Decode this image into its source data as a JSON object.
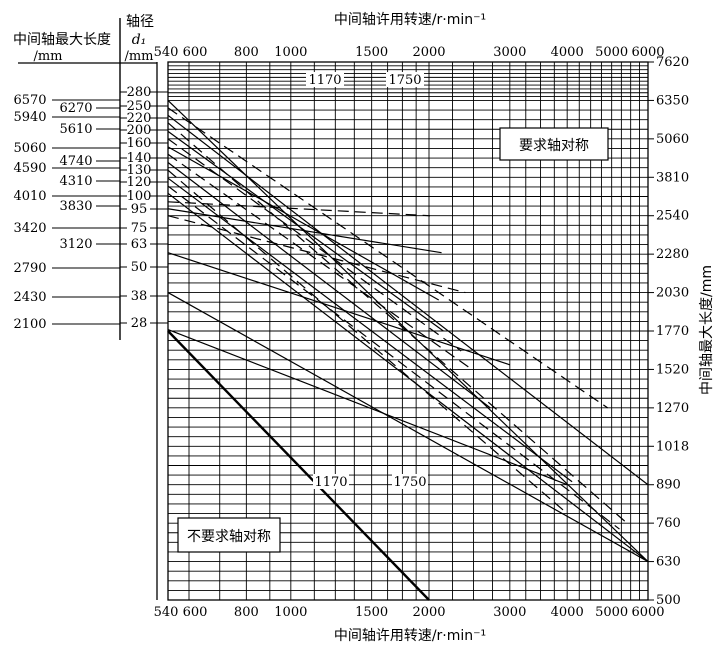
{
  "chart_data": {
    "type": "line",
    "title": "",
    "xlabel_top": "中间轴许用转速/r·min⁻¹",
    "xlabel_bottom": "中间轴许用转速/r·min⁻¹",
    "xscale": "log",
    "xlim": [
      540,
      6000
    ],
    "xticks": [
      540,
      600,
      800,
      1000,
      1500,
      2000,
      3000,
      4000,
      5000,
      6000
    ],
    "ylabel_right": "中间轴最大长度/mm",
    "right_ticks": [
      7620,
      6350,
      5060,
      3810,
      2540,
      2280,
      2030,
      1770,
      1520,
      1270,
      1018,
      890,
      760,
      630,
      500
    ],
    "left_header": {
      "length_title": "中间轴最大长度",
      "length_unit": "/mm",
      "dia_title": "轴径",
      "dia_symbol": "d₁",
      "dia_unit": "/mm"
    },
    "diameters": [
      "280",
      "250",
      "220",
      "200",
      "160",
      "140",
      "130",
      "120",
      "100",
      "95",
      "75",
      "63",
      "50",
      "38",
      "28"
    ],
    "lengths": [
      "6570",
      "6270",
      "5940",
      "5610",
      "5060",
      "4740",
      "4590",
      "4310",
      "4010",
      "3830",
      "3420",
      "3120",
      "2790",
      "2430",
      "2100"
    ],
    "box_sym": "要求轴对称",
    "box_nonsym": "不要求轴对称",
    "marker_labels": [
      "1170",
      "1750",
      "1170",
      "1750"
    ],
    "series": [
      {
        "style": "solid",
        "points": [
          [
            540,
            6350
          ],
          [
            6000,
            630
          ]
        ]
      },
      {
        "style": "dashed",
        "points": [
          [
            540,
            6100
          ],
          [
            4900,
            1270
          ]
        ]
      },
      {
        "style": "solid",
        "points": [
          [
            540,
            5850
          ],
          [
            6000,
            890
          ]
        ]
      },
      {
        "style": "dashed",
        "points": [
          [
            540,
            5600
          ],
          [
            5400,
            760
          ]
        ]
      },
      {
        "style": "solid",
        "points": [
          [
            540,
            5310
          ],
          [
            2150,
            1770
          ]
        ]
      },
      {
        "style": "dashed",
        "points": [
          [
            540,
            5060
          ],
          [
            2350,
            1640
          ]
        ]
      },
      {
        "style": "solid",
        "points": [
          [
            540,
            4800
          ],
          [
            2100,
            1980
          ]
        ]
      },
      {
        "style": "dashed",
        "points": [
          [
            540,
            4560
          ],
          [
            2480,
            1520
          ]
        ]
      },
      {
        "style": "solid",
        "points": [
          [
            540,
            4290
          ],
          [
            2720,
            1270
          ]
        ]
      },
      {
        "style": "dashed",
        "points": [
          [
            540,
            4040
          ],
          [
            3950,
            800
          ]
        ]
      },
      {
        "style": "solid",
        "points": [
          [
            540,
            3780
          ],
          [
            4100,
            900
          ]
        ]
      },
      {
        "style": "dashed",
        "points": [
          [
            540,
            3520
          ],
          [
            5200,
            740
          ]
        ]
      },
      {
        "style": "solid",
        "points": [
          [
            540,
            3280
          ],
          [
            6000,
            630
          ]
        ]
      },
      {
        "style": "dashed",
        "points": [
          [
            540,
            3000
          ],
          [
            2010,
            2540
          ]
        ]
      },
      {
        "style": "solid",
        "points": [
          [
            540,
            2770
          ],
          [
            2130,
            2290
          ]
        ]
      },
      {
        "style": "dashed",
        "points": [
          [
            540,
            2540
          ],
          [
            2400,
            2030
          ]
        ]
      },
      {
        "style": "solid",
        "points": [
          [
            540,
            2290
          ],
          [
            3000,
            1550
          ]
        ]
      },
      {
        "style": "solid",
        "points": [
          [
            540,
            2030
          ],
          [
            6000,
            630
          ]
        ]
      },
      {
        "style": "solid",
        "points": [
          [
            540,
            1780
          ],
          [
            4000,
            890
          ]
        ]
      },
      {
        "style": "bold",
        "points": [
          [
            540,
            1770
          ],
          [
            2000,
            500
          ]
        ]
      }
    ]
  }
}
